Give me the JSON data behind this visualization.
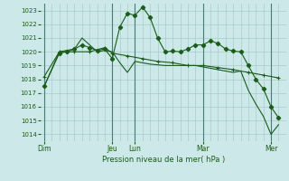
{
  "xlabel": "Pression niveau de la mer( hPa )",
  "bg_color": "#cce8e8",
  "grid_color": "#aacccc",
  "line_color": "#1a5c1a",
  "vline_color": "#4a7a7a",
  "ylim": [
    1013.5,
    1023.5
  ],
  "yticks": [
    1014,
    1015,
    1016,
    1017,
    1018,
    1019,
    1020,
    1021,
    1022,
    1023
  ],
  "day_labels": [
    "Dim",
    "Jeu",
    "Lun",
    "Mar",
    "Mer"
  ],
  "day_positions": [
    0,
    18,
    24,
    42,
    60
  ],
  "xlim": [
    -1,
    64
  ],
  "series1_diamond": {
    "x": [
      0,
      4,
      6,
      8,
      10,
      12,
      14,
      16,
      18,
      20,
      22,
      24,
      26,
      28,
      30,
      32,
      34,
      36,
      38,
      40,
      42,
      44,
      46,
      48,
      50,
      52,
      54,
      56,
      58,
      60,
      62
    ],
    "y": [
      1017.5,
      1019.9,
      1020.0,
      1020.2,
      1020.5,
      1020.3,
      1020.1,
      1020.2,
      1019.5,
      1021.8,
      1022.8,
      1022.65,
      1023.25,
      1022.5,
      1021.0,
      1020.0,
      1020.05,
      1020.0,
      1020.2,
      1020.5,
      1020.5,
      1020.8,
      1020.6,
      1020.2,
      1020.05,
      1020.0,
      1019.0,
      1018.0,
      1017.3,
      1016.0,
      1015.2
    ]
  },
  "series2_plus": {
    "x": [
      0,
      4,
      8,
      12,
      16,
      18,
      22,
      26,
      30,
      34,
      38,
      42,
      46,
      50,
      54,
      58,
      62
    ],
    "y": [
      1018.2,
      1020.0,
      1020.0,
      1020.0,
      1020.3,
      1019.9,
      1019.7,
      1019.5,
      1019.3,
      1019.2,
      1019.0,
      1019.0,
      1018.85,
      1018.7,
      1018.5,
      1018.3,
      1018.1
    ]
  },
  "series3_plain": {
    "x": [
      0,
      4,
      8,
      10,
      12,
      14,
      16,
      18,
      20,
      22,
      24,
      26,
      28,
      30,
      32,
      34,
      36,
      38,
      40,
      42,
      44,
      46,
      48,
      50,
      52,
      54,
      56,
      58,
      60,
      62
    ],
    "y": [
      1017.5,
      1020.0,
      1020.2,
      1021.0,
      1020.5,
      1020.0,
      1020.1,
      1020.0,
      1019.2,
      1018.5,
      1019.3,
      1019.2,
      1019.1,
      1019.05,
      1019.0,
      1019.0,
      1019.0,
      1019.0,
      1019.0,
      1018.9,
      1018.8,
      1018.7,
      1018.6,
      1018.5,
      1018.6,
      1017.2,
      1016.2,
      1015.3,
      1014.0,
      1014.7
    ]
  }
}
